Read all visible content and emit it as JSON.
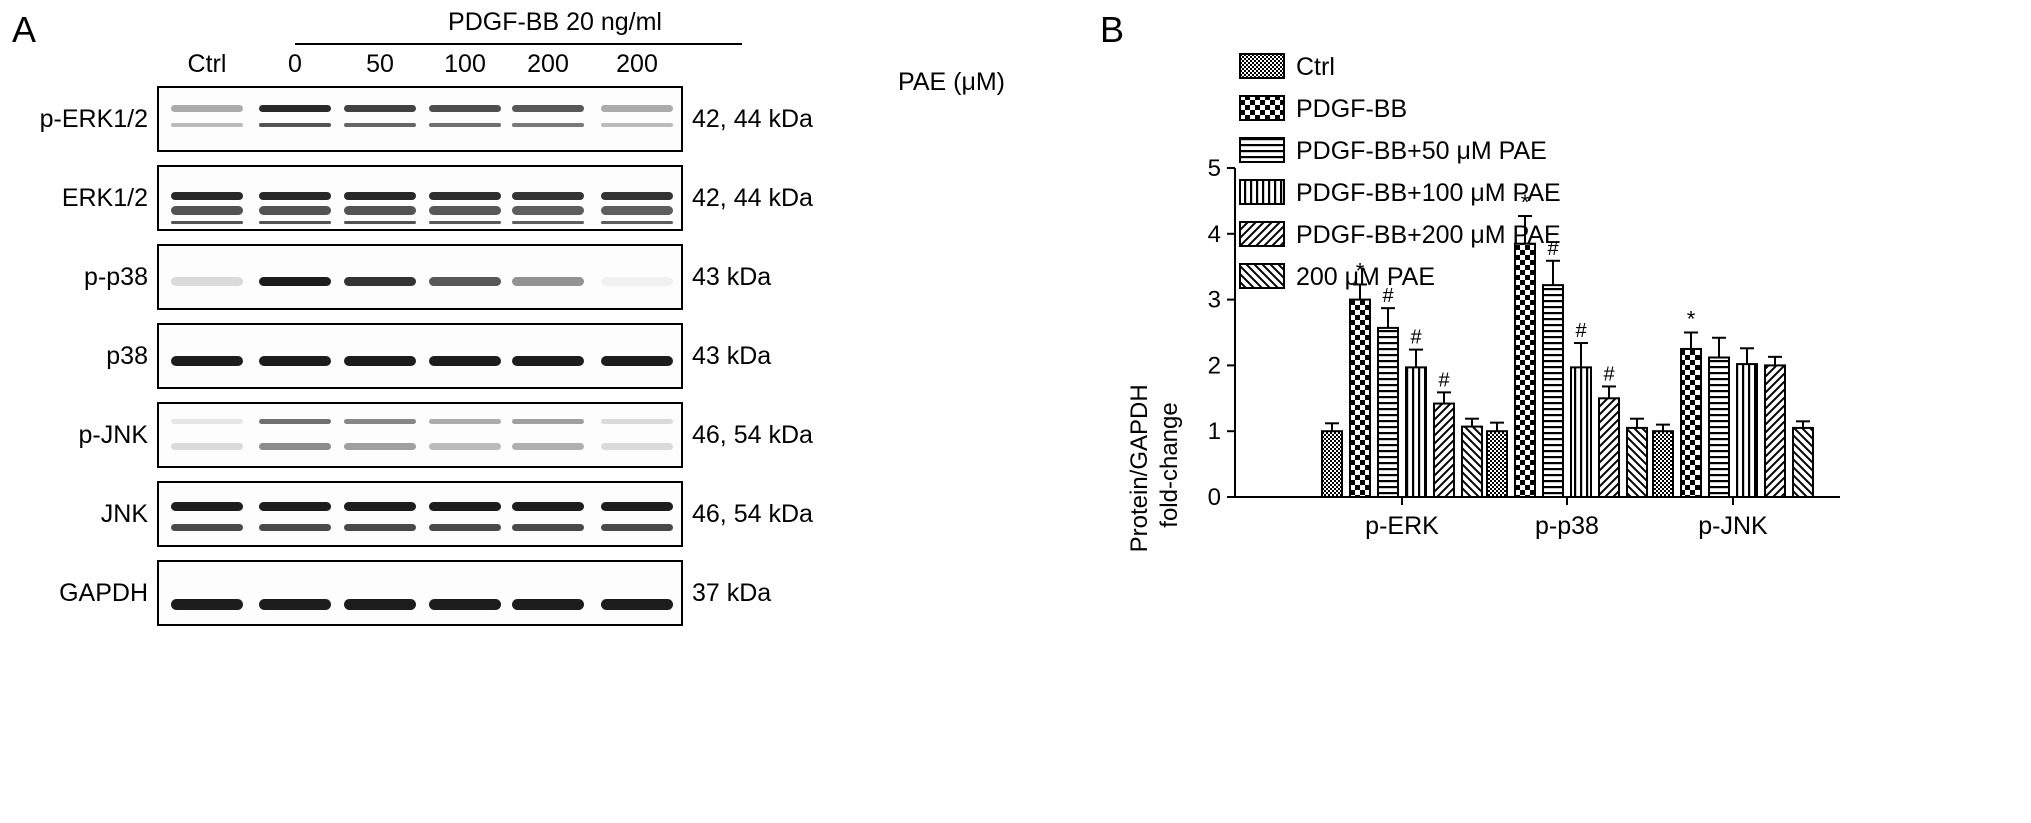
{
  "panel_a": {
    "letter": "A",
    "treatment_header": "PDGF-BB 20 ng/ml",
    "lane_labels": [
      "Ctrl",
      "0",
      "50",
      "100",
      "200",
      "200"
    ],
    "dose_unit_label": "PAE (μM)",
    "blots": [
      {
        "protein": "p-ERK1/2",
        "size": "42, 44 kDa",
        "band_intensity": [
          0.35,
          0.9,
          0.8,
          0.75,
          0.7,
          0.35
        ]
      },
      {
        "protein": "ERK1/2",
        "size": "42, 44 kDa",
        "band_intensity": [
          0.9,
          0.9,
          0.9,
          0.88,
          0.85,
          0.85
        ]
      },
      {
        "protein": "p-p38",
        "size": "43 kDa",
        "band_intensity": [
          0.15,
          0.95,
          0.85,
          0.7,
          0.45,
          0.05
        ]
      },
      {
        "protein": "p38",
        "size": "43 kDa",
        "band_intensity": [
          0.95,
          0.95,
          0.95,
          0.95,
          0.95,
          0.95
        ]
      },
      {
        "protein": "p-JNK",
        "size": "46, 54 kDa",
        "band_intensity": [
          0.1,
          0.6,
          0.5,
          0.35,
          0.4,
          0.15
        ]
      },
      {
        "protein": "JNK",
        "size": "46, 54 kDa",
        "band_intensity": [
          0.95,
          0.95,
          0.95,
          0.95,
          0.95,
          0.95
        ]
      },
      {
        "protein": "GAPDH",
        "size": "37 kDa",
        "band_intensity": [
          0.95,
          0.95,
          0.95,
          0.95,
          0.95,
          0.95
        ]
      }
    ]
  },
  "panel_b": {
    "letter": "B"
  },
  "chart_data": {
    "type": "bar",
    "categories": [
      "p-ERK",
      "p-p38",
      "p-JNK"
    ],
    "ylabel": "Protein/GAPDH fold-change",
    "ylabel_lines": [
      "Protein/GAPDH",
      "fold-change"
    ],
    "ylim": [
      0,
      5
    ],
    "yticks": [
      0,
      1,
      2,
      3,
      4,
      5
    ],
    "grid": false,
    "legend_position": "top-right",
    "series": [
      {
        "name": "Ctrl",
        "pattern": "checker-fine",
        "values": [
          1.0,
          1.0,
          1.0
        ],
        "errors": [
          0.12,
          0.13,
          0.1
        ],
        "marks": [
          "",
          "",
          ""
        ]
      },
      {
        "name": "PDGF-BB",
        "pattern": "checker-coarse",
        "values": [
          3.0,
          3.85,
          2.25
        ],
        "errors": [
          0.23,
          0.42,
          0.25
        ],
        "marks": [
          "*",
          "*",
          "*"
        ]
      },
      {
        "name": "PDGF-BB+50 μM PAE",
        "pattern": "horizontal",
        "values": [
          2.57,
          3.22,
          2.12
        ],
        "errors": [
          0.3,
          0.37,
          0.3
        ],
        "marks": [
          "#",
          "#",
          ""
        ]
      },
      {
        "name": "PDGF-BB+100 μM PAE",
        "pattern": "vertical",
        "values": [
          1.97,
          1.97,
          2.02
        ],
        "errors": [
          0.27,
          0.37,
          0.24
        ],
        "marks": [
          "#",
          "#",
          ""
        ]
      },
      {
        "name": "PDGF-BB+200 μM PAE",
        "pattern": "diagonal-up",
        "values": [
          1.42,
          1.5,
          2.0
        ],
        "errors": [
          0.17,
          0.18,
          0.13
        ],
        "marks": [
          "#",
          "#",
          ""
        ]
      },
      {
        "name": "200 μM PAE",
        "pattern": "diagonal-down",
        "values": [
          1.07,
          1.05,
          1.05
        ],
        "errors": [
          0.12,
          0.14,
          0.1
        ],
        "marks": [
          "",
          "",
          ""
        ]
      }
    ]
  }
}
